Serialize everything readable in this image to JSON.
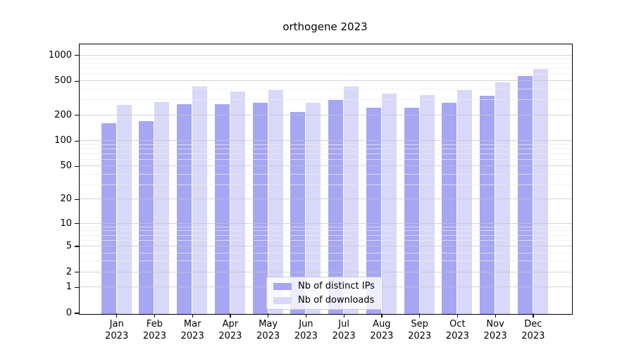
{
  "title": "orthogene 2023",
  "chart_data": {
    "type": "bar",
    "title": "orthogene 2023",
    "scale": "log1p",
    "grid": "on",
    "legend_position": "bottom-center",
    "categories": [
      "Jan\n2023",
      "Feb\n2023",
      "Mar\n2023",
      "Apr\n2023",
      "May\n2023",
      "Jun\n2023",
      "Jul\n2023",
      "Aug\n2023",
      "Sep\n2023",
      "Oct\n2023",
      "Nov\n2023",
      "Dec\n2023"
    ],
    "series": [
      {
        "name": "Nb of distinct IPs",
        "color": "#a6a6f3",
        "values": [
          163,
          173,
          274,
          274,
          280,
          220,
          305,
          246,
          248,
          283,
          342,
          582
        ]
      },
      {
        "name": "Nb of downloads",
        "color": "#d8d8f8",
        "values": [
          267,
          285,
          438,
          383,
          393,
          284,
          432,
          360,
          347,
          395,
          488,
          700
        ]
      }
    ],
    "y_ticks": [
      0,
      1,
      2,
      5,
      10,
      20,
      50,
      100,
      200,
      500,
      1000
    ],
    "y_minor_ticks": [
      3,
      4,
      6,
      7,
      8,
      9,
      30,
      40,
      60,
      70,
      80,
      90,
      300,
      400,
      600,
      700,
      800,
      900
    ],
    "ylim": [
      0,
      1340
    ]
  }
}
